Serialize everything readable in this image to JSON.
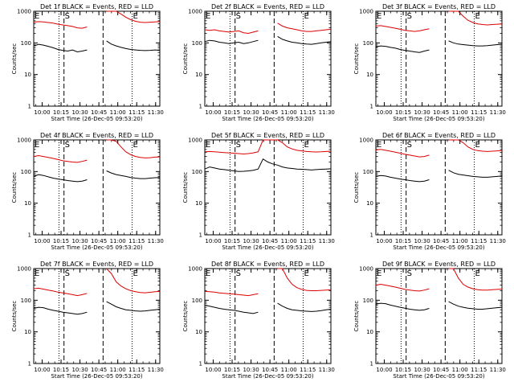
{
  "chart_data": {
    "type": "line",
    "panels": [
      {
        "title": "Det 1f BLACK = Events, RED = LLD",
        "black": [
          80,
          90,
          85,
          78,
          70,
          62,
          58,
          55,
          60,
          52,
          55,
          60,
          null,
          null,
          null,
          115,
          92,
          80,
          72,
          66,
          62,
          60,
          58,
          57,
          58,
          60,
          58
        ],
        "red": [
          450,
          470,
          460,
          440,
          420,
          390,
          370,
          350,
          330,
          300,
          290,
          320,
          null,
          null,
          null,
          1000,
          1000,
          1000,
          820,
          650,
          540,
          480,
          450,
          440,
          450,
          460,
          470
        ]
      },
      {
        "title": "Det 2f BLACK = Events, RED = LLD",
        "black": [
          110,
          120,
          115,
          105,
          100,
          95,
          100,
          105,
          95,
          100,
          110,
          120,
          null,
          null,
          null,
          160,
          130,
          115,
          105,
          100,
          95,
          92,
          90,
          95,
          100,
          105,
          110
        ],
        "red": [
          260,
          250,
          260,
          240,
          230,
          220,
          230,
          240,
          210,
          200,
          220,
          240,
          null,
          null,
          null,
          420,
          340,
          300,
          280,
          260,
          240,
          230,
          230,
          240,
          250,
          260,
          270
        ]
      },
      {
        "title": "Det 3f BLACK = Events, RED = LLD",
        "black": [
          75,
          80,
          78,
          72,
          68,
          62,
          58,
          55,
          52,
          50,
          55,
          60,
          null,
          null,
          null,
          115,
          100,
          92,
          88,
          85,
          82,
          80,
          80,
          82,
          85,
          88,
          90
        ],
        "red": [
          340,
          350,
          330,
          310,
          290,
          270,
          250,
          240,
          230,
          240,
          260,
          280,
          null,
          null,
          null,
          1000,
          1000,
          1000,
          700,
          520,
          440,
          400,
          380,
          370,
          380,
          390,
          400
        ]
      },
      {
        "title": "Det 4f BLACK = Events, RED = LLD",
        "black": [
          70,
          80,
          75,
          68,
          62,
          58,
          55,
          52,
          50,
          48,
          50,
          55,
          null,
          null,
          null,
          105,
          90,
          80,
          75,
          70,
          65,
          62,
          60,
          60,
          62,
          64,
          65
        ],
        "red": [
          300,
          320,
          300,
          280,
          260,
          240,
          220,
          210,
          200,
          195,
          210,
          230,
          null,
          null,
          null,
          1000,
          1000,
          900,
          600,
          420,
          340,
          300,
          280,
          270,
          275,
          285,
          290
        ]
      },
      {
        "title": "Det 5f BLACK = Events, RED = LLD",
        "black": [
          120,
          140,
          130,
          120,
          115,
          110,
          105,
          100,
          102,
          105,
          110,
          120,
          250,
          200,
          175,
          160,
          140,
          130,
          125,
          120,
          118,
          115,
          112,
          115,
          118,
          120,
          122
        ],
        "red": [
          420,
          430,
          420,
          410,
          400,
          390,
          380,
          370,
          360,
          370,
          390,
          420,
          1000,
          1000,
          1000,
          1000,
          820,
          600,
          520,
          470,
          450,
          430,
          420,
          415,
          420,
          430,
          440
        ]
      },
      {
        "title": "Det 6f BLACK = Events, RED = LLD",
        "black": [
          70,
          75,
          72,
          66,
          62,
          58,
          55,
          52,
          50,
          48,
          50,
          55,
          null,
          null,
          null,
          110,
          92,
          82,
          78,
          74,
          70,
          68,
          66,
          66,
          68,
          70,
          72
        ],
        "red": [
          480,
          500,
          470,
          440,
          410,
          380,
          350,
          330,
          310,
          290,
          300,
          330,
          null,
          null,
          null,
          1000,
          1000,
          1000,
          820,
          600,
          500,
          460,
          440,
          430,
          440,
          450,
          460
        ]
      },
      {
        "title": "Det 7f BLACK = Events, RED = LLD",
        "black": [
          55,
          60,
          58,
          52,
          48,
          45,
          42,
          40,
          38,
          36,
          38,
          42,
          null,
          null,
          null,
          90,
          75,
          62,
          55,
          50,
          48,
          46,
          45,
          46,
          48,
          50,
          52
        ],
        "red": [
          230,
          240,
          225,
          210,
          195,
          180,
          170,
          160,
          150,
          140,
          150,
          165,
          null,
          null,
          null,
          1000,
          700,
          380,
          280,
          230,
          200,
          185,
          175,
          172,
          178,
          185,
          190
        ]
      },
      {
        "title": "Det 8f BLACK = Events, RED = LLD",
        "black": [
          70,
          65,
          60,
          55,
          52,
          50,
          48,
          45,
          42,
          40,
          38,
          42,
          null,
          null,
          null,
          80,
          65,
          55,
          50,
          48,
          46,
          45,
          44,
          45,
          47,
          50,
          52
        ],
        "red": [
          190,
          185,
          180,
          170,
          165,
          160,
          155,
          150,
          145,
          140,
          150,
          160,
          null,
          null,
          null,
          1000,
          1000,
          500,
          320,
          250,
          220,
          205,
          200,
          200,
          205,
          210,
          215
        ]
      },
      {
        "title": "Det 9f BLACK = Events, RED = LLD",
        "black": [
          75,
          80,
          78,
          70,
          65,
          60,
          56,
          52,
          50,
          48,
          50,
          55,
          null,
          null,
          null,
          90,
          75,
          65,
          60,
          56,
          54,
          52,
          52,
          54,
          56,
          58,
          60
        ],
        "red": [
          300,
          320,
          300,
          280,
          260,
          240,
          220,
          210,
          200,
          195,
          210,
          230,
          null,
          null,
          null,
          1000,
          1000,
          500,
          320,
          260,
          230,
          215,
          210,
          210,
          215,
          220,
          225
        ]
      }
    ],
    "x_ticks": [
      "10:00",
      "10:15",
      "10:30",
      "10:45",
      "11:00",
      "11:15",
      "11:30"
    ],
    "y_ticks": [
      "1",
      "10",
      "100",
      "1000"
    ],
    "ylabel": "Counts/sec",
    "xlabel": "Start Time (26-Dec-05 09:53:20)",
    "yscale": "log",
    "ylim": [
      1,
      1000
    ],
    "x_range_minutes": [
      0,
      100
    ],
    "markers": [
      {
        "label": "E",
        "at_minute": 0,
        "style": "solid"
      },
      {
        "label": "",
        "at_minute": 20,
        "style": "dotted"
      },
      {
        "label": "S",
        "at_minute": 24,
        "style": "dashed"
      },
      {
        "label": "",
        "at_minute": 55,
        "style": "dashed"
      },
      {
        "label": "E",
        "at_minute": 78,
        "style": "dotted"
      }
    ],
    "colors": {
      "black": "#000000",
      "red": "#dd0000"
    }
  }
}
